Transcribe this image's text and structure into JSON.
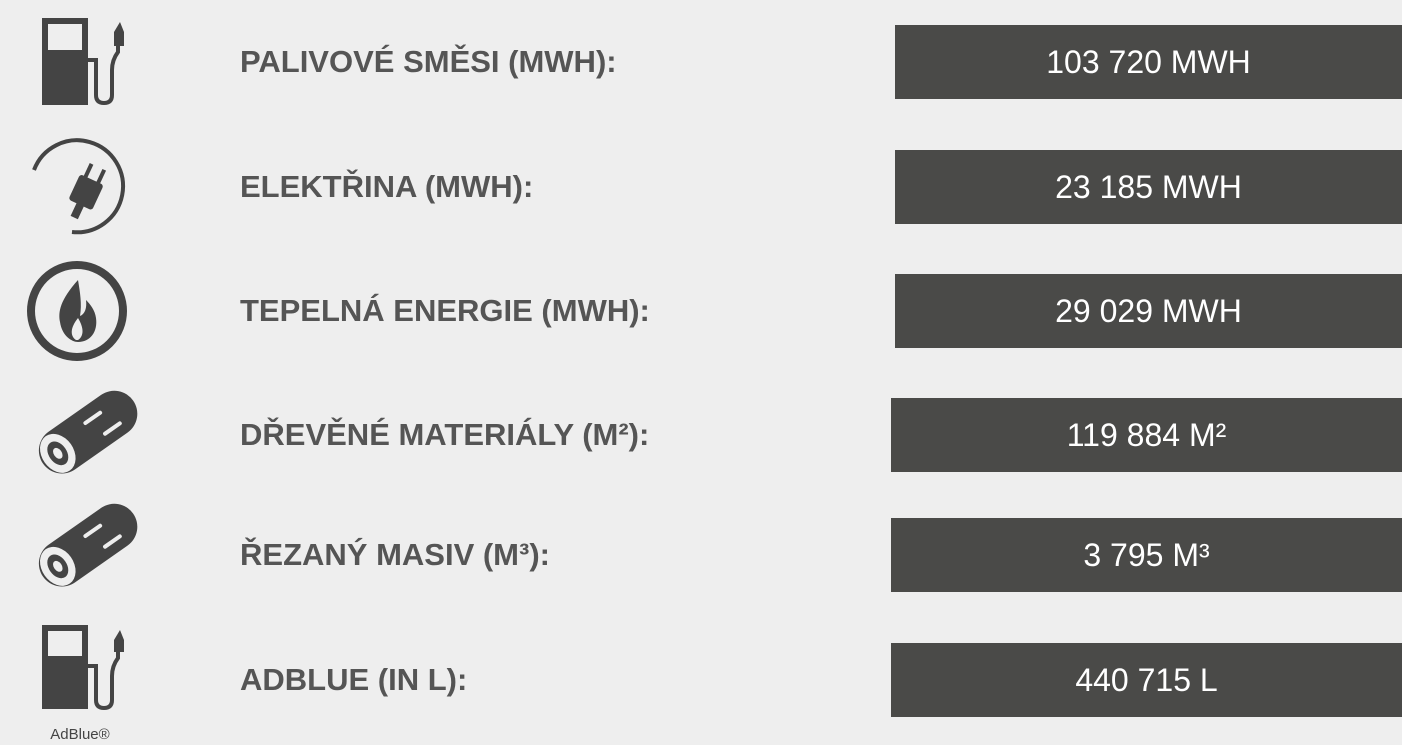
{
  "rows": [
    {
      "label": "PALIVOVÉ SMĚSI (MWH):",
      "value": "103 720 MWH"
    },
    {
      "label": "ELEKTŘINA (MWH):",
      "value": "23 185 MWH"
    },
    {
      "label": "TEPELNÁ ENERGIE (MWH):",
      "value": "29 029 MWH"
    },
    {
      "label": "DŘEVĚNÉ MATERIÁLY (M²):",
      "value": "119 884 M²"
    },
    {
      "label": "ŘEZANÝ MASIV (M³):",
      "value": "3 795 M³"
    },
    {
      "label": "ADBLUE (IN L):",
      "value": "440 715 L",
      "icon_caption": "AdBlue®"
    }
  ]
}
